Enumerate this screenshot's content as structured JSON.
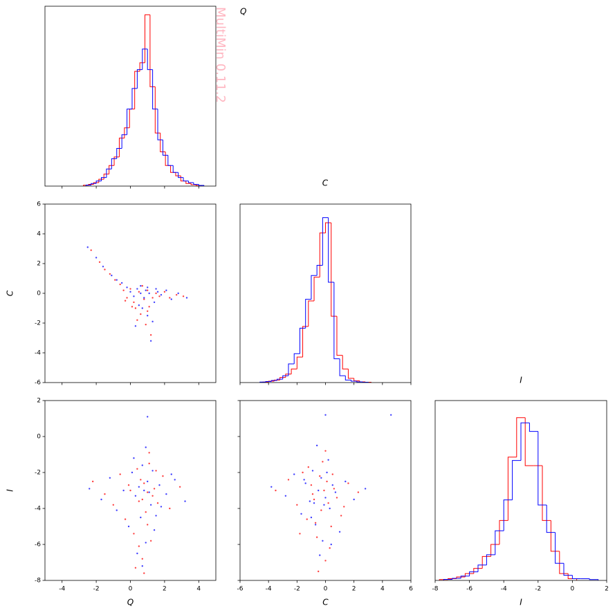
{
  "watermark": "MultiMin 0.11.2",
  "chart_data": [
    {
      "type": "histogram",
      "title": "Q",
      "xlim": [
        -5,
        5
      ],
      "ylim": [
        0,
        1.05
      ],
      "xticks": [
        -4,
        -2,
        0,
        2,
        4
      ],
      "show_xticklabels": false,
      "series": [
        {
          "color": "#ff0000",
          "bins": [
            -2.75,
            -2.45,
            -2.15,
            -1.85,
            -1.55,
            -1.25,
            -0.95,
            -0.65,
            -0.35,
            -0.05,
            0.25,
            0.55,
            0.85,
            1.15,
            1.45,
            1.75,
            2.05,
            2.35,
            2.65,
            2.95,
            3.25,
            3.55,
            3.85,
            4.15
          ],
          "values": [
            0.005,
            0.01,
            0.02,
            0.04,
            0.07,
            0.12,
            0.17,
            0.28,
            0.34,
            0.45,
            0.67,
            0.72,
            1.0,
            0.58,
            0.31,
            0.2,
            0.12,
            0.08,
            0.06,
            0.03,
            0.015,
            0.008,
            0.003
          ]
        },
        {
          "color": "#0000ff",
          "bins": [
            -2.6,
            -2.3,
            -2.0,
            -1.7,
            -1.4,
            -1.1,
            -0.8,
            -0.5,
            -0.2,
            0.1,
            0.4,
            0.7,
            1.0,
            1.3,
            1.6,
            1.9,
            2.2,
            2.5,
            2.8,
            3.1,
            3.4,
            3.7,
            4.0,
            4.3
          ],
          "values": [
            0.006,
            0.015,
            0.03,
            0.05,
            0.1,
            0.16,
            0.22,
            0.3,
            0.45,
            0.57,
            0.68,
            0.8,
            0.68,
            0.45,
            0.27,
            0.18,
            0.12,
            0.08,
            0.05,
            0.03,
            0.02,
            0.01,
            0.004
          ]
        }
      ]
    },
    {
      "type": "scatter",
      "ylabel": "C",
      "xlim": [
        -5,
        5
      ],
      "ylim": [
        -6,
        6
      ],
      "xticks": [
        -4,
        -2,
        0,
        2,
        4
      ],
      "yticks": [
        -6,
        -4,
        -2,
        0,
        2,
        4,
        6
      ],
      "show_xticklabels": false,
      "show_yticklabels": true,
      "series": [
        {
          "color": "#ff0000",
          "x": [
            -2.3,
            -1.8,
            -1.5,
            -1.2,
            -0.9,
            -0.6,
            -0.4,
            -0.2,
            0,
            0.2,
            0.3,
            0.5,
            0.6,
            0.8,
            0.9,
            1.0,
            1.1,
            1.2,
            1.3,
            1.5,
            1.7,
            2.0,
            2.3,
            2.7,
            3.1,
            0.4,
            0.7,
            1.0,
            0.1,
            -0.3
          ],
          "y": [
            2.9,
            2.1,
            1.6,
            1.3,
            0.9,
            0.6,
            0.2,
            -0.3,
            0.3,
            -0.6,
            -1.0,
            0.1,
            -1.4,
            -0.4,
            -2.1,
            0.2,
            -0.9,
            -2.8,
            -0.3,
            0.0,
            -0.2,
            0.1,
            -0.3,
            -0.1,
            -0.2,
            -1.8,
            0.5,
            -1.2,
            -0.9,
            -0.5
          ]
        },
        {
          "color": "#0000ff",
          "x": [
            -2.5,
            -2.0,
            -1.6,
            -1.1,
            -0.8,
            -0.5,
            -0.2,
            0.0,
            0.2,
            0.4,
            0.5,
            0.6,
            0.8,
            0.9,
            1.0,
            1.1,
            1.2,
            1.4,
            1.6,
            1.8,
            2.1,
            2.4,
            2.8,
            3.3,
            0.3,
            0.7,
            1.0,
            1.3,
            0.6,
            1.5
          ],
          "y": [
            3.1,
            2.4,
            1.8,
            1.2,
            0.9,
            0.7,
            0.4,
            0.1,
            -0.2,
            0.3,
            -0.8,
            0.5,
            -0.3,
            0.2,
            -1.5,
            0.0,
            -3.2,
            -0.6,
            0.1,
            -0.1,
            0.2,
            -0.4,
            0.0,
            -0.3,
            -2.2,
            -1.0,
            0.4,
            -1.9,
            0.0,
            0.3
          ]
        }
      ]
    },
    {
      "type": "histogram",
      "title": "C",
      "xlim": [
        -6,
        6
      ],
      "ylim": [
        0,
        1.05
      ],
      "xticks": [
        -6,
        -4,
        -2,
        0,
        2,
        4,
        6
      ],
      "show_xticklabels": false,
      "series": [
        {
          "color": "#ff0000",
          "bins": [
            -4.4,
            -4.0,
            -3.6,
            -3.2,
            -2.8,
            -2.4,
            -2.0,
            -1.6,
            -1.2,
            -0.8,
            -0.4,
            0.0,
            0.4,
            0.8,
            1.2,
            1.6,
            2.0,
            2.4,
            2.8,
            3.2
          ],
          "values": [
            0.003,
            0.008,
            0.015,
            0.03,
            0.05,
            0.08,
            0.15,
            0.33,
            0.48,
            0.62,
            0.88,
            0.94,
            0.39,
            0.16,
            0.08,
            0.025,
            0.01,
            0.004,
            0.002
          ]
        },
        {
          "color": "#0000ff",
          "bins": [
            -4.6,
            -4.2,
            -3.8,
            -3.4,
            -3.0,
            -2.6,
            -2.2,
            -1.8,
            -1.4,
            -1.0,
            -0.6,
            -0.2,
            0.2,
            0.6,
            1.0,
            1.4,
            1.8,
            2.2,
            2.6,
            3.0
          ],
          "values": [
            0.003,
            0.006,
            0.012,
            0.02,
            0.04,
            0.11,
            0.17,
            0.32,
            0.49,
            0.63,
            0.69,
            0.97,
            0.59,
            0.14,
            0.04,
            0.015,
            0.008,
            0.004,
            0.002
          ]
        }
      ]
    },
    {
      "type": "scatter",
      "xlabel": "Q",
      "ylabel": "I",
      "xlim": [
        -5,
        5
      ],
      "ylim": [
        -8,
        2
      ],
      "xticks": [
        -4,
        -2,
        0,
        2,
        4
      ],
      "yticks": [
        -8,
        -6,
        -4,
        -2,
        0,
        2
      ],
      "show_xticklabels": true,
      "show_yticklabels": true,
      "series": [
        {
          "color": "#ff0000",
          "x": [
            -2.2,
            -1.5,
            -1.0,
            -0.6,
            -0.3,
            0,
            0.2,
            0.4,
            0.5,
            0.7,
            0.8,
            0.9,
            1.0,
            1.1,
            1.2,
            1.4,
            1.6,
            1.9,
            2.3,
            2.9,
            0.3,
            0.6,
            1.0,
            1.3,
            -0.1,
            0.8,
            1.5,
            0.5,
            1.1,
            0.7
          ],
          "y": [
            -2.5,
            -3.2,
            -3.8,
            -2.1,
            -4.6,
            -3.0,
            -5.4,
            -1.8,
            -3.6,
            -6.8,
            -2.6,
            -4.2,
            -3.1,
            -1.5,
            -5.8,
            -2.9,
            -3.7,
            -2.2,
            -4.0,
            -2.8,
            -7.3,
            -2.4,
            -4.9,
            -3.3,
            -2.7,
            -7.6,
            -1.9,
            -6.1,
            -0.9,
            -3.5
          ]
        },
        {
          "color": "#0000ff",
          "x": [
            -2.4,
            -1.7,
            -1.2,
            -0.8,
            -0.4,
            -0.1,
            0.1,
            0.3,
            0.6,
            0.7,
            0.8,
            0.9,
            1.0,
            1.2,
            1.3,
            1.5,
            1.7,
            2.1,
            2.6,
            3.2,
            0.4,
            0.9,
            1.1,
            0.5,
            1.4,
            0.2,
            1.8,
            0.7,
            1.0,
            2.4
          ],
          "y": [
            -2.9,
            -3.5,
            -2.3,
            -4.1,
            -3.0,
            -5.0,
            -2.0,
            -3.3,
            -4.5,
            -1.6,
            -3.0,
            -5.9,
            -2.5,
            -3.8,
            -1.9,
            -4.4,
            -2.7,
            -3.2,
            -2.4,
            -3.6,
            -6.5,
            -0.6,
            -3.1,
            -2.8,
            -5.2,
            -1.2,
            -3.9,
            -7.2,
            1.1,
            -2.1
          ]
        }
      ]
    },
    {
      "type": "scatter",
      "xlabel": "C",
      "xlim": [
        -6,
        6
      ],
      "ylim": [
        -8,
        2
      ],
      "xticks": [
        -6,
        -4,
        -2,
        0,
        2,
        4,
        6
      ],
      "yticks": [
        -8,
        -6,
        -4,
        -2,
        0,
        2
      ],
      "show_xticklabels": true,
      "show_yticklabels": false,
      "series": [
        {
          "color": "#ff0000",
          "x": [
            -3.5,
            -2.6,
            -2.0,
            -1.6,
            -1.3,
            -1.0,
            -0.8,
            -0.6,
            -0.4,
            -0.3,
            -0.1,
            0,
            0.1,
            0.2,
            0.4,
            0.6,
            0.8,
            1.1,
            1.6,
            2.3,
            -0.5,
            -1.2,
            0.3,
            -0.2,
            -0.7,
            0.5,
            -1.8,
            0.0,
            -0.9,
            1.3
          ],
          "y": [
            -3.0,
            -2.4,
            -3.8,
            -2.0,
            -4.6,
            -2.7,
            -3.5,
            -5.6,
            -2.2,
            -4.1,
            -3.0,
            -6.9,
            -2.5,
            -3.7,
            -5.0,
            -2.9,
            -3.4,
            -4.4,
            -2.6,
            -3.1,
            -7.5,
            -1.7,
            -6.2,
            -1.4,
            -4.8,
            -2.1,
            -5.4,
            -0.8,
            -3.2,
            -3.9
          ]
        },
        {
          "color": "#0000ff",
          "x": [
            -3.8,
            -2.8,
            -2.2,
            -1.7,
            -1.4,
            -1.1,
            -0.9,
            -0.7,
            -0.5,
            -0.3,
            -0.2,
            0,
            0.1,
            0.3,
            0.5,
            0.7,
            1.0,
            1.4,
            2.0,
            2.8,
            -0.4,
            -1.0,
            0.2,
            -0.1,
            -0.6,
            0.4,
            -1.5,
            0.0,
            4.6,
            -0.8
          ],
          "y": [
            -2.8,
            -3.3,
            -2.1,
            -4.3,
            -2.6,
            -3.6,
            -1.9,
            -4.9,
            -3.0,
            -2.3,
            -5.8,
            -3.4,
            -2.0,
            -4.0,
            -2.7,
            -3.1,
            -5.3,
            -2.5,
            -3.5,
            -2.9,
            -6.6,
            -4.5,
            -1.3,
            -3.8,
            -0.5,
            -6.0,
            -2.4,
            1.2,
            1.2,
            -3.7
          ]
        }
      ]
    },
    {
      "type": "histogram",
      "title": "I",
      "xlabel": "I",
      "xlim": [
        -8,
        2
      ],
      "ylim": [
        0,
        1.05
      ],
      "xticks": [
        -8,
        -6,
        -4,
        -2,
        0,
        2
      ],
      "show_xticklabels": true,
      "series": [
        {
          "color": "#ff0000",
          "bins": [
            -7.75,
            -7.25,
            -6.75,
            -6.25,
            -5.75,
            -5.25,
            -4.75,
            -4.25,
            -3.75,
            -3.25,
            -2.75,
            -2.25,
            -1.75,
            -1.25,
            -0.75,
            -0.25,
            0.25
          ],
          "values": [
            0.005,
            0.01,
            0.02,
            0.04,
            0.07,
            0.14,
            0.21,
            0.35,
            0.72,
            0.95,
            0.67,
            0.67,
            0.35,
            0.17,
            0.04,
            0.01
          ]
        },
        {
          "color": "#0000ff",
          "bins": [
            -7.5,
            -7.0,
            -6.5,
            -6.0,
            -5.5,
            -5.0,
            -4.5,
            -4.0,
            -3.5,
            -3.0,
            -2.5,
            -2.0,
            -1.5,
            -1.0,
            -0.5,
            0.0,
            0.5,
            1.0,
            1.5
          ],
          "values": [
            0.006,
            0.012,
            0.025,
            0.05,
            0.09,
            0.15,
            0.29,
            0.47,
            0.7,
            0.92,
            0.87,
            0.44,
            0.28,
            0.1,
            0.03,
            0.01,
            0.01,
            0.005
          ]
        }
      ]
    }
  ]
}
